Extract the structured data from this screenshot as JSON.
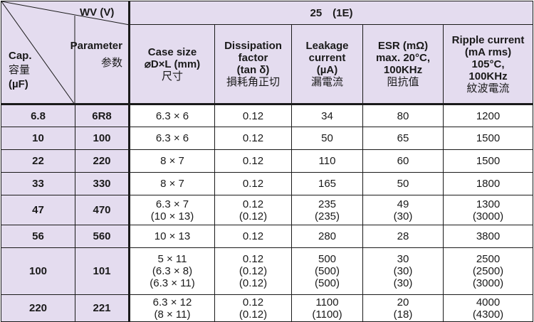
{
  "corner": {
    "wv_label": "WV (V)",
    "parameter_label": "Parameter",
    "parameter_cn": "参数",
    "cap_label": "Cap.",
    "cap_cn": "容量",
    "cap_unit": "(µF)"
  },
  "voltage_header": "25　(1E)",
  "columns": [
    {
      "lines": [
        "Case size",
        "⌀D×L (mm)"
      ],
      "cn": "尺寸"
    },
    {
      "lines": [
        "Dissipation",
        "factor",
        "(tan δ)"
      ],
      "cn": "損耗角正切"
    },
    {
      "lines": [
        "Leakage",
        "current",
        "(µA)"
      ],
      "cn": "漏電流"
    },
    {
      "lines": [
        "ESR (mΩ)",
        "max. 20°C,",
        "100KHz"
      ],
      "cn": "阻抗值"
    },
    {
      "lines": [
        "Ripple current",
        "(mA rms)",
        "105°C,",
        "100KHz"
      ],
      "cn": "紋波電流"
    }
  ],
  "rows": [
    {
      "cap": "6.8",
      "code": "6R8",
      "case": [
        "6.3 × 6"
      ],
      "df": [
        "0.12"
      ],
      "leak": [
        "34"
      ],
      "esr": [
        "80"
      ],
      "ripple": [
        "1200"
      ]
    },
    {
      "cap": "10",
      "code": "100",
      "case": [
        "6.3 × 6"
      ],
      "df": [
        "0.12"
      ],
      "leak": [
        "50"
      ],
      "esr": [
        "65"
      ],
      "ripple": [
        "1500"
      ]
    },
    {
      "cap": "22",
      "code": "220",
      "case": [
        "8 × 7"
      ],
      "df": [
        "0.12"
      ],
      "leak": [
        "110"
      ],
      "esr": [
        "60"
      ],
      "ripple": [
        "1500"
      ]
    },
    {
      "cap": "33",
      "code": "330",
      "case": [
        "8 × 7"
      ],
      "df": [
        "0.12"
      ],
      "leak": [
        "165"
      ],
      "esr": [
        "50"
      ],
      "ripple": [
        "1800"
      ]
    },
    {
      "cap": "47",
      "code": "470",
      "case": [
        "6.3 × 7",
        "(10 × 13)"
      ],
      "df": [
        "0.12",
        "(0.12)"
      ],
      "leak": [
        "235",
        "(235)"
      ],
      "esr": [
        "49",
        "(30)"
      ],
      "ripple": [
        "1300",
        "(3000)"
      ]
    },
    {
      "cap": "56",
      "code": "560",
      "case": [
        "10 × 13"
      ],
      "df": [
        "0.12"
      ],
      "leak": [
        "280"
      ],
      "esr": [
        "28"
      ],
      "ripple": [
        "3800"
      ]
    },
    {
      "cap": "100",
      "code": "101",
      "case": [
        "5 × 11",
        "(6.3 × 8)",
        "(6.3 × 11)"
      ],
      "df": [
        "0.12",
        "(0.12)",
        "(0.12)"
      ],
      "leak": [
        "500",
        "(500)",
        "(500)"
      ],
      "esr": [
        "30",
        "(30)",
        "(30)"
      ],
      "ripple": [
        "2500",
        "(2500)",
        "(3000)"
      ]
    },
    {
      "cap": "220",
      "code": "221",
      "case": [
        "6.3 × 12",
        "(8 × 11)"
      ],
      "df": [
        "0.12",
        "(0.12)"
      ],
      "leak": [
        "1100",
        "(1100)"
      ],
      "esr": [
        "20",
        "(18)"
      ],
      "ripple": [
        "4000",
        "(4300)"
      ]
    }
  ]
}
